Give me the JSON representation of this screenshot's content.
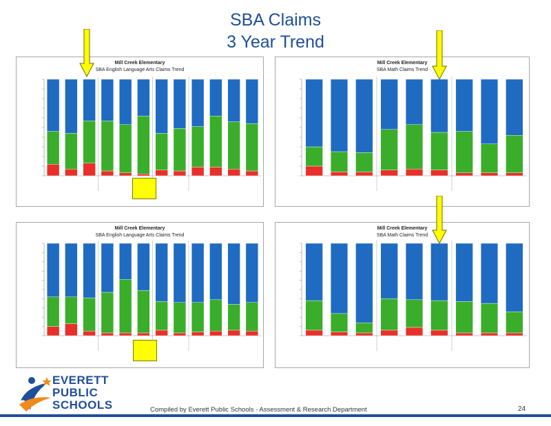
{
  "title_line1": "SBA Claims",
  "title_line2": "3 Year Trend",
  "footer": {
    "compiled": "Compiled by Everett Public Schools - Assessment & Research Department",
    "page_number": "24",
    "logo_line1": "EVERETT",
    "logo_line2": "PUBLIC",
    "logo_line3": "SCHOOLS"
  },
  "colors": {
    "red": "#e8302a",
    "green": "#3aae2a",
    "blue": "#1f6bc2",
    "arrow": "#ffff00"
  },
  "panels": [
    {
      "school": "Mill Creek Elementary",
      "subtitle": "SBA English Language Arts Claims Trend",
      "arrow_on_bar": 2
    },
    {
      "school": "Mill Creek Elementary",
      "subtitle": "SBA Math Claims Trend",
      "arrow_on_bar": 5
    },
    {
      "school": "Mill Creek Elementary",
      "subtitle": "SBA English Language Arts Claims Trend",
      "arrow_on_bar": -1
    },
    {
      "school": "Mill Creek Elementary",
      "subtitle": "SBA Math Claims Trend",
      "arrow_on_bar": 5
    }
  ],
  "chart_data": [
    {
      "type": "bar",
      "stacked": true,
      "title": "Mill Creek Elementary",
      "subtitle": "SBA English Language Arts Claims Trend",
      "ylim": [
        0,
        100
      ],
      "series": [
        {
          "values": [
            12,
            7,
            13,
            5,
            3,
            2,
            6,
            5,
            9,
            9,
            7,
            5
          ]
        },
        {
          "values": [
            34,
            37,
            44,
            52,
            50,
            60,
            38,
            44,
            42,
            53,
            49,
            49
          ]
        },
        {
          "values": [
            54,
            56,
            43,
            43,
            47,
            38,
            56,
            51,
            49,
            38,
            44,
            46
          ]
        }
      ]
    },
    {
      "type": "bar",
      "stacked": true,
      "title": "Mill Creek Elementary",
      "subtitle": "SBA Math Claims Trend",
      "ylim": [
        0,
        100
      ],
      "series": [
        {
          "values": [
            10,
            4,
            4,
            6,
            7,
            6,
            3,
            3,
            3
          ]
        },
        {
          "values": [
            20,
            21,
            20,
            42,
            46,
            39,
            43,
            30,
            39
          ]
        },
        {
          "values": [
            70,
            75,
            76,
            52,
            47,
            55,
            54,
            67,
            58
          ]
        }
      ]
    },
    {
      "type": "bar",
      "stacked": true,
      "title": "Mill Creek Elementary",
      "subtitle": "SBA English Language Arts Claims Trend",
      "ylim": [
        0,
        100
      ],
      "series": [
        {
          "values": [
            10,
            13,
            5,
            3,
            3,
            3,
            6,
            3,
            4,
            5,
            6,
            5
          ]
        },
        {
          "values": [
            32,
            29,
            36,
            44,
            58,
            46,
            31,
            33,
            32,
            34,
            28,
            31
          ]
        },
        {
          "values": [
            58,
            58,
            59,
            53,
            39,
            51,
            63,
            64,
            64,
            61,
            66,
            64
          ]
        }
      ]
    },
    {
      "type": "bar",
      "stacked": true,
      "title": "Mill Creek Elementary",
      "subtitle": "SBA Math Claims Trend",
      "ylim": [
        0,
        100
      ],
      "series": [
        {
          "values": [
            6,
            4,
            3,
            6,
            9,
            6,
            3,
            3,
            3
          ]
        },
        {
          "values": [
            32,
            20,
            11,
            34,
            30,
            32,
            34,
            32,
            23
          ]
        },
        {
          "values": [
            62,
            76,
            86,
            60,
            61,
            62,
            63,
            65,
            74
          ]
        }
      ]
    }
  ]
}
